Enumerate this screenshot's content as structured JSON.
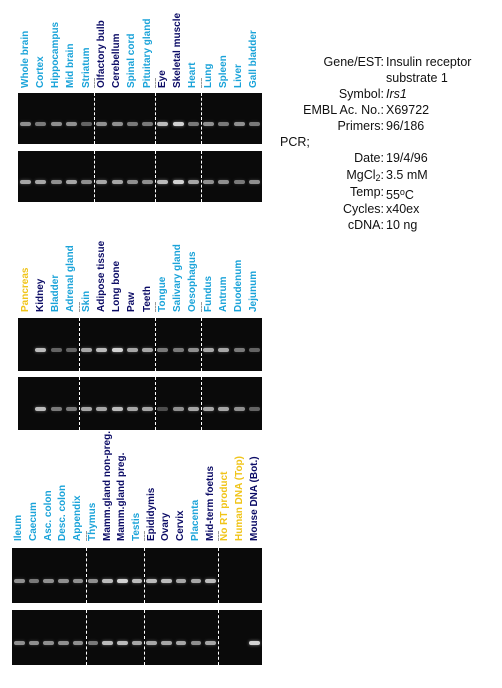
{
  "colors": {
    "tissue_label": "#1aa3d9",
    "highlight_label": "#0c0c66",
    "control_label": "#f0c419",
    "gel_background": "#0a0a0a",
    "band": "#e8e8e8",
    "separator": "#ffffff"
  },
  "panels": [
    {
      "id": "panel-1",
      "lanes": [
        {
          "label": "Whole brain",
          "color": "blue",
          "top": 0.6,
          "bottom": 0.7
        },
        {
          "label": "Cortex",
          "color": "blue",
          "top": 0.5,
          "bottom": 0.7
        },
        {
          "label": "Hippocampus",
          "color": "blue",
          "top": 0.6,
          "bottom": 0.6
        },
        {
          "label": "Mid brain",
          "color": "blue",
          "top": 0.6,
          "bottom": 0.7
        },
        {
          "label": "Striatum",
          "color": "blue",
          "top": 0.4,
          "bottom": 0.6
        },
        {
          "label": "Olfactory bulb",
          "color": "dark",
          "top": 0.6,
          "bottom": 0.7
        },
        {
          "label": "Cerebellum",
          "color": "dark",
          "top": 0.6,
          "bottom": 0.7
        },
        {
          "label": "Spinal cord",
          "color": "blue",
          "top": 0.5,
          "bottom": 0.6
        },
        {
          "label": "Pituitary gland",
          "color": "blue",
          "top": 0.5,
          "bottom": 0.6
        },
        {
          "label": "Eye",
          "color": "dark",
          "top": 0.8,
          "bottom": 0.8
        },
        {
          "label": "Skeletal muscle",
          "color": "dark",
          "top": 0.9,
          "bottom": 0.9
        },
        {
          "label": "Heart",
          "color": "blue",
          "top": 0.5,
          "bottom": 0.7
        },
        {
          "label": "Lung",
          "color": "blue",
          "top": 0.6,
          "bottom": 0.6
        },
        {
          "label": "Spleen",
          "color": "blue",
          "top": 0.5,
          "bottom": 0.6
        },
        {
          "label": "Liver",
          "color": "blue",
          "top": 0.6,
          "bottom": 0.5
        },
        {
          "label": "Gall bladder",
          "color": "blue",
          "top": 0.5,
          "bottom": 0.6
        }
      ],
      "separators_after": [
        4,
        8,
        11
      ]
    },
    {
      "id": "panel-2",
      "lanes": [
        {
          "label": "Pancreas",
          "color": "yellow",
          "top": 0.0,
          "bottom": 0.0
        },
        {
          "label": "Kidney",
          "color": "dark",
          "top": 0.8,
          "bottom": 0.8
        },
        {
          "label": "Bladder",
          "color": "blue",
          "top": 0.4,
          "bottom": 0.5
        },
        {
          "label": "Adrenal gland",
          "color": "blue",
          "top": 0.4,
          "bottom": 0.5
        },
        {
          "label": "Skin",
          "color": "blue",
          "top": 0.7,
          "bottom": 0.7
        },
        {
          "label": "Adipose tissue",
          "color": "dark",
          "top": 0.8,
          "bottom": 0.7
        },
        {
          "label": "Long bone",
          "color": "dark",
          "top": 0.9,
          "bottom": 0.8
        },
        {
          "label": "Paw",
          "color": "dark",
          "top": 0.7,
          "bottom": 0.7
        },
        {
          "label": "Teeth",
          "color": "dark",
          "top": 0.7,
          "bottom": 0.7
        },
        {
          "label": "Tongue",
          "color": "blue",
          "top": 0.5,
          "bottom": 0.3
        },
        {
          "label": "Salivary gland",
          "color": "blue",
          "top": 0.5,
          "bottom": 0.6
        },
        {
          "label": "Oesophagus",
          "color": "blue",
          "top": 0.6,
          "bottom": 0.7
        },
        {
          "label": "Fundus",
          "color": "blue",
          "top": 0.7,
          "bottom": 0.7
        },
        {
          "label": "Antrum",
          "color": "blue",
          "top": 0.7,
          "bottom": 0.7
        },
        {
          "label": "Duodenum",
          "color": "blue",
          "top": 0.5,
          "bottom": 0.6
        },
        {
          "label": "Jejunum",
          "color": "blue",
          "top": 0.4,
          "bottom": 0.4
        }
      ],
      "separators_after": [
        3,
        8,
        11
      ]
    },
    {
      "id": "panel-3",
      "lanes": [
        {
          "label": "Ileum",
          "color": "blue",
          "top": 0.6,
          "bottom": 0.6
        },
        {
          "label": "Caecum",
          "color": "blue",
          "top": 0.5,
          "bottom": 0.6
        },
        {
          "label": "Asc. colon",
          "color": "blue",
          "top": 0.6,
          "bottom": 0.6
        },
        {
          "label": "Desc. colon",
          "color": "blue",
          "top": 0.6,
          "bottom": 0.6
        },
        {
          "label": "Appendix",
          "color": "blue",
          "top": 0.6,
          "bottom": 0.6
        },
        {
          "label": "Thymus",
          "color": "blue",
          "top": 0.6,
          "bottom": 0.5
        },
        {
          "label": "Mamm.gland non-preg.",
          "color": "dark",
          "top": 0.8,
          "bottom": 0.8
        },
        {
          "label": "Mamm.gland preg.",
          "color": "dark",
          "top": 0.9,
          "bottom": 0.8
        },
        {
          "label": "Testis",
          "color": "blue",
          "top": 0.8,
          "bottom": 0.7
        },
        {
          "label": "Epididymis",
          "color": "dark",
          "top": 0.8,
          "bottom": 0.7
        },
        {
          "label": "Ovary",
          "color": "dark",
          "top": 0.8,
          "bottom": 0.7
        },
        {
          "label": "Cervix",
          "color": "dark",
          "top": 0.7,
          "bottom": 0.7
        },
        {
          "label": "Placenta",
          "color": "blue",
          "top": 0.7,
          "bottom": 0.6
        },
        {
          "label": "Mid-term foetus",
          "color": "dark",
          "top": 0.8,
          "bottom": 0.7
        },
        {
          "label": "No RT product",
          "color": "yellow",
          "top": 0.0,
          "bottom": 0.0
        },
        {
          "label": "Human DNA (Top)",
          "color": "yellow",
          "top": 0.0,
          "bottom": 0.0
        },
        {
          "label": "Mouse DNA (Bot.)",
          "color": "dark",
          "top": 0.0,
          "bottom": 0.9
        }
      ],
      "separators_after": [
        4,
        8,
        13
      ]
    }
  ],
  "info": {
    "gene_key": "Gene/EST:",
    "gene_value_line1": "Insulin receptor",
    "gene_value_line2": "substrate 1",
    "symbol_key": "Symbol:",
    "symbol_value": "Irs1",
    "embl_key": "EMBL Ac. No.:",
    "embl_value": "X69722",
    "primers_key": "Primers:",
    "primers_value": "96/186",
    "pcr_key": "PCR;",
    "date_key": "Date:",
    "date_value": "19/4/96",
    "mgcl_key_main": "MgCl",
    "mgcl_key_sub": "2",
    "mgcl_key_colon": ":",
    "mgcl_value": "3.5 mM",
    "temp_key": "Temp:",
    "temp_value_num": "55",
    "temp_value_sup": "o",
    "temp_value_unit": "C",
    "cycles_key": "Cycles:",
    "cycles_value": "x40ex",
    "cdna_key": "cDNA:",
    "cdna_value": "10 ng"
  }
}
